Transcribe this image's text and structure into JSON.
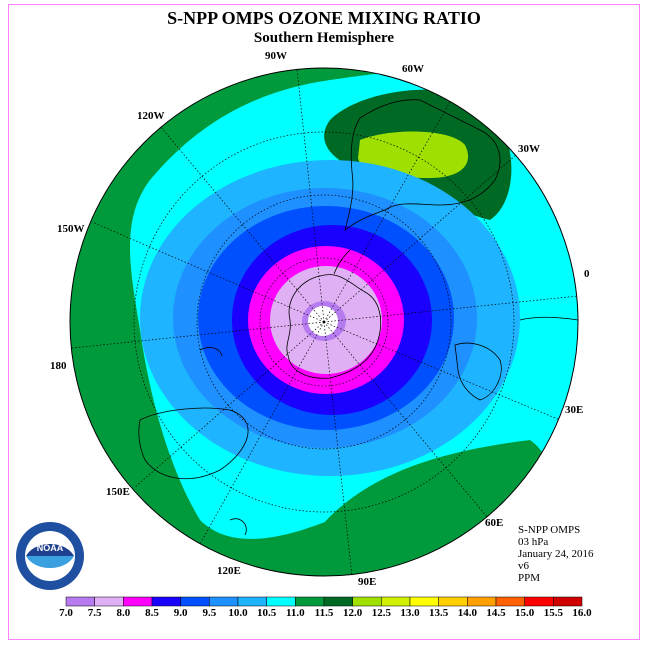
{
  "title": "S-NPP OMPS OZONE MIXING RATIO",
  "subtitle": "Southern Hemisphere",
  "longitude_labels": {
    "w90": "90W",
    "w60": "60W",
    "w30": "30W",
    "e0": "0",
    "e30": "30E",
    "e60": "60E",
    "e90": "90E",
    "e120": "120E",
    "e150": "150E",
    "e180": "180",
    "w150": "150W",
    "w120": "120W"
  },
  "info": {
    "instrument": "S-NPP OMPS",
    "level": "03 hPa",
    "date": "January 24, 2016",
    "version": "v6",
    "units": "PPM"
  },
  "logo_text": "NOAA",
  "colorbar": {
    "ticks": [
      "7.0",
      "7.5",
      "8.0",
      "8.5",
      "9.0",
      "9.5",
      "10.0",
      "10.5",
      "11.0",
      "11.5",
      "12.0",
      "12.5",
      "13.0",
      "13.5",
      "14.0",
      "14.5",
      "15.0",
      "15.5",
      "16.0"
    ],
    "colors": [
      "#b77bf0",
      "#e0b0f5",
      "#ff00ff",
      "#1a00ff",
      "#0050ff",
      "#1e90ff",
      "#1eb4ff",
      "#00ffff",
      "#009a3c",
      "#006a24",
      "#a0e000",
      "#d0f000",
      "#ffff00",
      "#ffd000",
      "#ffa000",
      "#ff6000",
      "#ff0000",
      "#d00000",
      "#8b4513"
    ]
  }
}
